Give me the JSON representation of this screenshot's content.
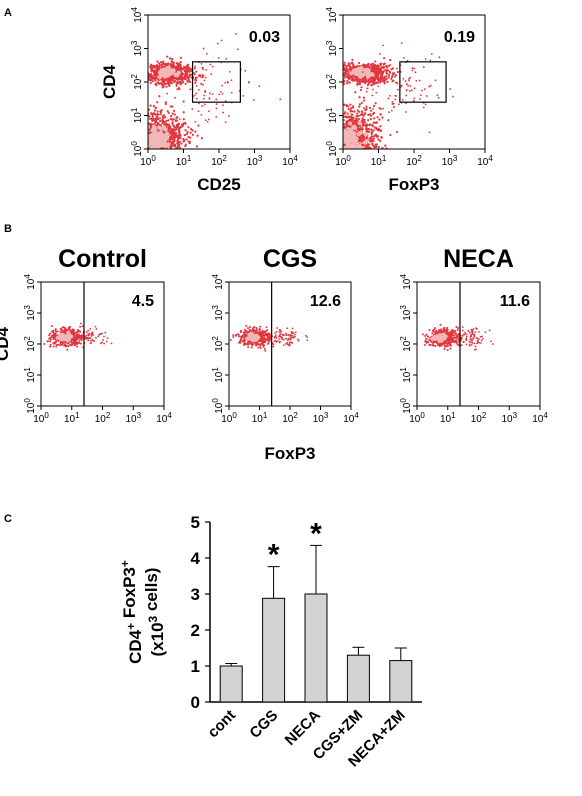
{
  "panels": {
    "a": {
      "letter": "A"
    },
    "b": {
      "letter": "B"
    },
    "c": {
      "letter": "C"
    }
  },
  "flow_tick_labels": [
    "10^0",
    "10^1",
    "10^2",
    "10^3",
    "10^4"
  ],
  "colors": {
    "dots": "#e2363e",
    "dense_center": "#f2b8b8",
    "bar_fill": "#d3d3d3",
    "axis": "#000000"
  },
  "chart_data": [
    {
      "type": "scatter",
      "panel": "A",
      "xlabel": "CD25",
      "ylabel": "CD4",
      "axis_scale": "log",
      "xlim": [
        1,
        10000
      ],
      "ylim": [
        1,
        10000
      ],
      "gate": {
        "x": [
          18,
          400
        ],
        "y": [
          25,
          400
        ],
        "value": "0.03"
      }
    },
    {
      "type": "scatter",
      "panel": "A",
      "xlabel": "FoxP3",
      "ylabel": "",
      "axis_scale": "log",
      "xlim": [
        1,
        10000
      ],
      "ylim": [
        1,
        10000
      ],
      "gate": {
        "x": [
          40,
          800
        ],
        "y": [
          25,
          400
        ],
        "value": "0.19"
      }
    },
    {
      "type": "scatter",
      "panel": "B",
      "title": "Control",
      "xlabel": "",
      "ylabel": "CD4",
      "axis_scale": "log",
      "xlim": [
        1,
        10000
      ],
      "ylim": [
        1,
        10000
      ],
      "gate_threshold_x": 25,
      "gate_value": "4.5"
    },
    {
      "type": "scatter",
      "panel": "B",
      "title": "CGS",
      "xlabel": "FoxP3",
      "ylabel": "",
      "axis_scale": "log",
      "xlim": [
        1,
        10000
      ],
      "ylim": [
        1,
        10000
      ],
      "gate_threshold_x": 25,
      "gate_value": "12.6"
    },
    {
      "type": "scatter",
      "panel": "B",
      "title": "NECA",
      "xlabel": "",
      "ylabel": "",
      "axis_scale": "log",
      "xlim": [
        1,
        10000
      ],
      "ylim": [
        1,
        10000
      ],
      "gate_threshold_x": 25,
      "gate_value": "11.6"
    },
    {
      "type": "bar",
      "panel": "C",
      "categories": [
        "cont",
        "CGS",
        "NECA",
        "CGS+ZM",
        "NECA+ZM"
      ],
      "values": [
        1.0,
        2.88,
        3.0,
        1.3,
        1.15
      ],
      "errors": [
        0.07,
        0.88,
        1.35,
        0.22,
        0.35
      ],
      "significant": [
        false,
        true,
        true,
        false,
        false
      ],
      "significance_marker": "*",
      "ylabel_line1": "CD4+ FoxP3+",
      "ylabel_line2": "(x10^3 cells)",
      "ylim": [
        0,
        5
      ],
      "yticks": [
        "0",
        "1",
        "2",
        "3",
        "4",
        "5"
      ]
    }
  ]
}
